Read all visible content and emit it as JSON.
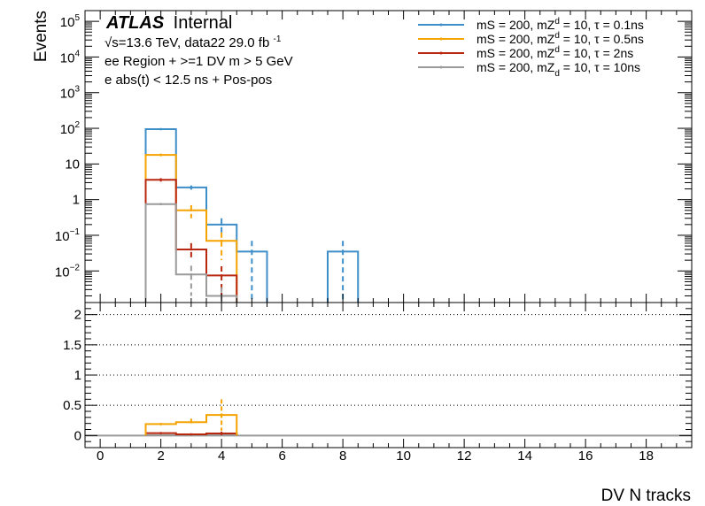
{
  "chart_data": {
    "type": "histogram",
    "xlabel": "DV N tracks",
    "ylabel": "Events",
    "x_range": [
      -0.5,
      19.5
    ],
    "x_ticks": [
      0,
      2,
      4,
      6,
      8,
      10,
      12,
      14,
      16,
      18
    ],
    "top_panel": {
      "y_scale": "log",
      "y_range": [
        0.0013,
        200000
      ],
      "y_tick_labels": [
        {
          "value": 100000,
          "base": "10",
          "exp": "5"
        },
        {
          "value": 10000,
          "base": "10",
          "exp": "4"
        },
        {
          "value": 1000,
          "base": "10",
          "exp": "3"
        },
        {
          "value": 100,
          "base": "10",
          "exp": "2"
        },
        {
          "value": 10,
          "base": "10",
          "exp": ""
        },
        {
          "value": 1,
          "base": "1",
          "exp": ""
        },
        {
          "value": 0.1,
          "base": "10",
          "exp": "−1"
        },
        {
          "value": 0.01,
          "base": "10",
          "exp": "−2"
        }
      ]
    },
    "bottom_panel": {
      "y_range": [
        -0.2,
        2.2
      ],
      "y_ticks": [
        0,
        0.5,
        1,
        1.5,
        2
      ],
      "y_tick_labels": [
        "0",
        "0.5",
        "1",
        "1.5",
        "2"
      ],
      "grid_lines": [
        0.5,
        1,
        1.5,
        2
      ]
    },
    "annotations": {
      "atlas": "ATLAS",
      "internal": "Internal",
      "energy": "√s=13.6 TeV, data22 29.0 fb",
      "lumi_exp": "-1",
      "region": "ee Region + >=1 DV m > 5 GeV",
      "cut": "e abs(t) < 12.5 ns + Pos-pos"
    },
    "legend_position": "top-right",
    "series": [
      {
        "name": "mS = 200, mZ_d = 10, τ = 0.1ns",
        "legend": {
          "a": "mS = 200, mZ",
          "sub": "",
          "sup": "d",
          "b": " = 10, τ = 0.1ns"
        },
        "color": "#3d8ec9",
        "bins": [
          {
            "x": 2,
            "y": 95,
            "err": 4
          },
          {
            "x": 3,
            "y": 2.2,
            "err": 0.3
          },
          {
            "x": 4,
            "y": 0.2,
            "err": 0.1
          },
          {
            "x": 5,
            "y": 0.035,
            "err": 0.035
          },
          {
            "x": 8,
            "y": 0.035,
            "err": 0.035
          }
        ],
        "ratio": [
          {
            "x": 2,
            "y": 0,
            "err": 0
          },
          {
            "x": 3,
            "y": 0,
            "err": 0
          },
          {
            "x": 4,
            "y": 0,
            "err": 0
          }
        ]
      },
      {
        "name": "mS = 200, mZ^d = 10, τ = 0.5ns",
        "legend": {
          "a": "mS = 200, mZ",
          "sub": "",
          "sup": "d",
          "b": " = 10, τ = 0.5ns"
        },
        "color": "#f5a300",
        "bins": [
          {
            "x": 2,
            "y": 18,
            "err": 1.5
          },
          {
            "x": 3,
            "y": 0.5,
            "err": 0.2
          },
          {
            "x": 4,
            "y": 0.07,
            "err": 0.05
          }
        ],
        "ratio": [
          {
            "x": 2,
            "y": 0.19,
            "err": 0.02
          },
          {
            "x": 3,
            "y": 0.22,
            "err": 0.06
          },
          {
            "x": 4,
            "y": 0.34,
            "err": 0.26
          }
        ]
      },
      {
        "name": "mS = 200, mZ^d = 10, τ = 2ns",
        "legend": {
          "a": "mS = 200, mZ",
          "sub": "",
          "sup": "d",
          "b": " = 10, τ = 2ns"
        },
        "color": "#b9270e",
        "bins": [
          {
            "x": 2,
            "y": 3.6,
            "err": 0.4
          },
          {
            "x": 3,
            "y": 0.04,
            "err": 0.02
          },
          {
            "x": 4,
            "y": 0.0075,
            "err": 0.006
          }
        ],
        "ratio": [
          {
            "x": 2,
            "y": 0.04,
            "err": 0.005
          },
          {
            "x": 3,
            "y": 0.02,
            "err": 0.01
          },
          {
            "x": 4,
            "y": 0.035,
            "err": 0.03
          }
        ]
      },
      {
        "name": "mS = 200, mZ_d = 10, τ = 10ns",
        "legend": {
          "a": "mS = 200, mZ",
          "sub": "d",
          "sup": "",
          "b": " = 10, τ = 10ns"
        },
        "color": "#9a9a9a",
        "bins": [
          {
            "x": 2,
            "y": 0.75,
            "err": 0.05
          },
          {
            "x": 3,
            "y": 0.008,
            "err": 0.006
          },
          {
            "x": 4,
            "y": 0.002,
            "err": 0.0015
          }
        ],
        "ratio": [
          {
            "x": 2,
            "y": 0.007,
            "err": 0.003
          },
          {
            "x": 3,
            "y": 0.004,
            "err": 0.004
          },
          {
            "x": 4,
            "y": 0.01,
            "err": 0.01
          }
        ]
      }
    ]
  }
}
